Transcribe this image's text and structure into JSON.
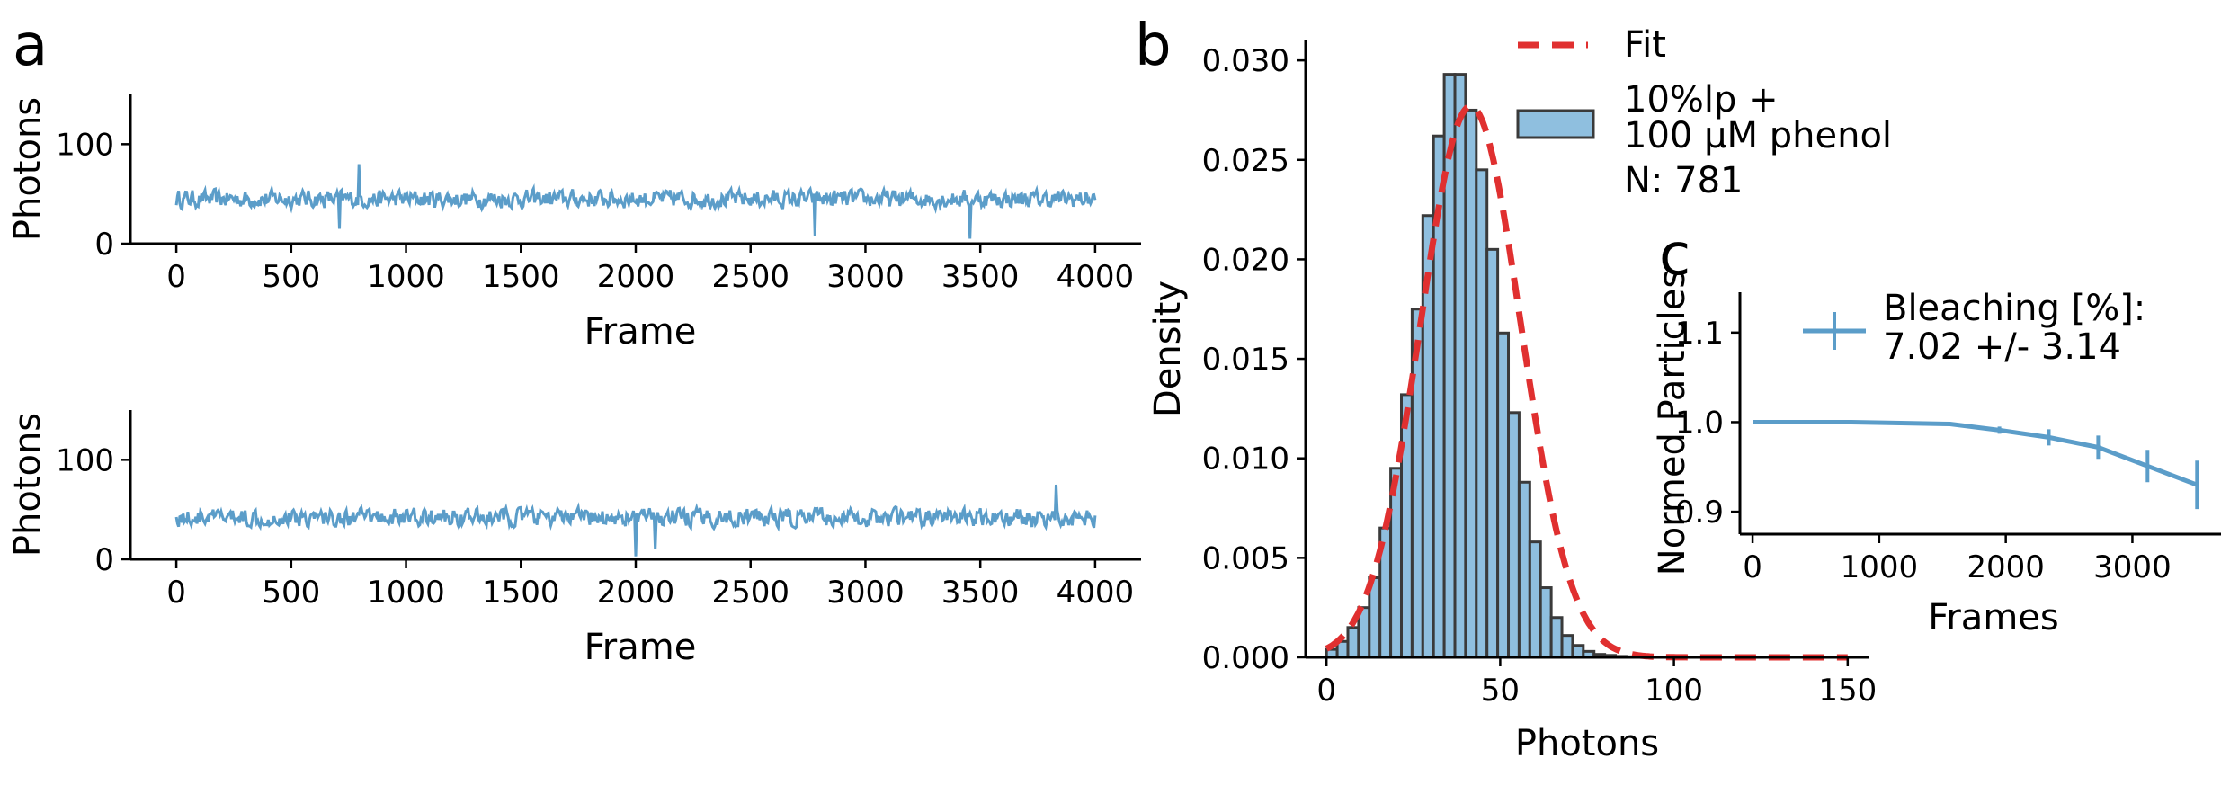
{
  "chart_data": [
    {
      "panel": "a",
      "type": "line",
      "ylabel": "Photons",
      "xlabel": "Frame",
      "xlim": [
        -200,
        4200
      ],
      "ylim": [
        0,
        150
      ],
      "xticks": [
        0,
        500,
        1000,
        1500,
        2000,
        2500,
        3000,
        3500,
        4000
      ],
      "yticks": [
        0,
        100
      ],
      "line_color": "#5b9dc9",
      "trace": {
        "frames": 4000,
        "mean": 45,
        "noise_amplitude": 10,
        "dips": [
          {
            "x": 710,
            "y": 15
          },
          {
            "x": 2780,
            "y": 8
          },
          {
            "x": 3455,
            "y": 5
          }
        ],
        "peaks": [
          {
            "x": 795,
            "y": 80
          }
        ]
      }
    },
    {
      "panel": "",
      "type": "line",
      "ylabel": "Photons",
      "xlabel": "Frame",
      "xlim": [
        -200,
        4200
      ],
      "ylim": [
        0,
        150
      ],
      "xticks": [
        0,
        500,
        1000,
        1500,
        2000,
        2500,
        3000,
        3500,
        4000
      ],
      "yticks": [
        0,
        100
      ],
      "line_color": "#5b9dc9",
      "trace": {
        "frames": 4000,
        "mean": 42,
        "noise_amplitude": 10,
        "dips": [
          {
            "x": 2000,
            "y": 3
          },
          {
            "x": 2085,
            "y": 10
          }
        ],
        "peaks": [
          {
            "x": 3830,
            "y": 75
          }
        ]
      }
    },
    {
      "panel": "b",
      "type": "bar",
      "xlabel": "Photons",
      "ylabel": "Density",
      "xlim": [
        -6,
        156
      ],
      "ylim": [
        0,
        0.031
      ],
      "xticks": [
        0,
        50,
        100,
        150
      ],
      "yticks": [
        "0.000",
        "0.005",
        "0.010",
        "0.015",
        "0.020",
        "0.025",
        "0.030"
      ],
      "bin_width": 3.08,
      "bin_start": 0,
      "bin_values": [
        0.0004,
        0.0008,
        0.0015,
        0.0025,
        0.004,
        0.0065,
        0.0095,
        0.0132,
        0.0175,
        0.0222,
        0.0262,
        0.0293,
        0.0293,
        0.0275,
        0.0245,
        0.0205,
        0.0163,
        0.0123,
        0.0088,
        0.0058,
        0.0035,
        0.002,
        0.0011,
        0.0006,
        0.0003,
        0.00015,
        0.0001,
        5e-05,
        3e-05
      ],
      "bar_color": "#8fbfdf",
      "edge_color": "#3a3a3a",
      "fit": {
        "mean": 41.5,
        "sd": 14.4,
        "peak": 0.0277,
        "x_range": [
          0,
          150
        ]
      },
      "fit_color": "#e03030",
      "legend": {
        "fit_label": "Fit",
        "series_label_lines": [
          "10%lp +",
          "100 μM phenol"
        ],
        "count_label": "N: 781"
      }
    },
    {
      "panel": "c",
      "type": "line",
      "xlabel": "Frames",
      "ylabel": "Normed Particles",
      "xlim": [
        -100,
        3700
      ],
      "ylim": [
        0.875,
        1.145
      ],
      "xticks": [
        0,
        1000,
        2000,
        3000
      ],
      "yticks": [
        "0.9",
        "1.0",
        "1.1"
      ],
      "x": [
        0,
        780,
        1170,
        1560,
        1950,
        2340,
        2730,
        3120,
        3510
      ],
      "y": [
        1.0,
        1.0,
        0.999,
        0.998,
        0.991,
        0.983,
        0.972,
        0.951,
        0.93
      ],
      "yerr": [
        0.0,
        0.0,
        0.0,
        0.0015,
        0.004,
        0.009,
        0.013,
        0.018,
        0.027
      ],
      "line_color": "#5b9dc9",
      "legend": {
        "label_lines": [
          "Bleaching [%]:",
          "7.02 +/- 3.14"
        ]
      }
    }
  ]
}
